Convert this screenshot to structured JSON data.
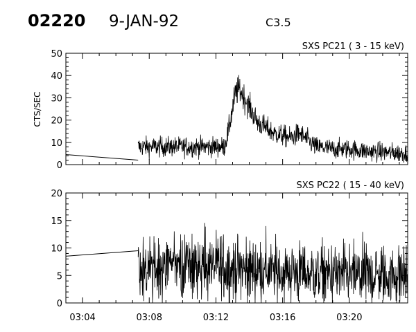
{
  "header": {
    "event_id": "02220",
    "date": "9-JAN-92",
    "flare_class": "C3.5"
  },
  "chart_data": [
    {
      "type": "line",
      "title": "SXS PC21  (  3 - 15 keV)",
      "ylabel": "CTS/SEC",
      "xlabel": "",
      "xlim": [
        "03:03:00",
        "03:23:30"
      ],
      "ylim": [
        0,
        50
      ],
      "yticks": [
        0,
        10,
        20,
        30,
        40,
        50
      ],
      "grid": false,
      "gap_line": [
        {
          "x": "03:03:00",
          "y": 4.5
        },
        {
          "x": "03:07:20",
          "y": 2.0
        }
      ],
      "profile_points": [
        {
          "x": "03:07:20",
          "y": 8
        },
        {
          "x": "03:10:00",
          "y": 8
        },
        {
          "x": "03:12:30",
          "y": 8
        },
        {
          "x": "03:12:45",
          "y": 15
        },
        {
          "x": "03:13:10",
          "y": 32
        },
        {
          "x": "03:13:25",
          "y": 34
        },
        {
          "x": "03:14:00",
          "y": 26
        },
        {
          "x": "03:14:30",
          "y": 19
        },
        {
          "x": "03:15:30",
          "y": 14
        },
        {
          "x": "03:16:30",
          "y": 12
        },
        {
          "x": "03:17:00",
          "y": 14
        },
        {
          "x": "03:18:00",
          "y": 8
        },
        {
          "x": "03:19:00",
          "y": 7
        },
        {
          "x": "03:20:00",
          "y": 7
        },
        {
          "x": "03:21:00",
          "y": 6
        },
        {
          "x": "03:23:30",
          "y": 5
        }
      ],
      "noise_amplitude": 2.8
    },
    {
      "type": "line",
      "title": "SXS PC22  ( 15 - 40 keV)",
      "ylabel": "",
      "xlabel": "",
      "xlim": [
        "03:03:00",
        "03:23:30"
      ],
      "ylim": [
        0,
        20
      ],
      "yticks": [
        0,
        5,
        10,
        15,
        20
      ],
      "xticks": [
        "03:04",
        "03:08",
        "03:12",
        "03:16",
        "03:20"
      ],
      "grid": false,
      "gap_line": [
        {
          "x": "03:03:00",
          "y": 8.5
        },
        {
          "x": "03:07:20",
          "y": 9.5
        }
      ],
      "profile_points": [
        {
          "x": "03:07:20",
          "y": 6
        },
        {
          "x": "03:10:00",
          "y": 6.5
        },
        {
          "x": "03:12:00",
          "y": 6.5
        },
        {
          "x": "03:14:00",
          "y": 6
        },
        {
          "x": "03:17:00",
          "y": 5.5
        },
        {
          "x": "03:20:00",
          "y": 5
        },
        {
          "x": "03:23:30",
          "y": 5
        }
      ],
      "noise_amplitude": 3.2
    }
  ]
}
